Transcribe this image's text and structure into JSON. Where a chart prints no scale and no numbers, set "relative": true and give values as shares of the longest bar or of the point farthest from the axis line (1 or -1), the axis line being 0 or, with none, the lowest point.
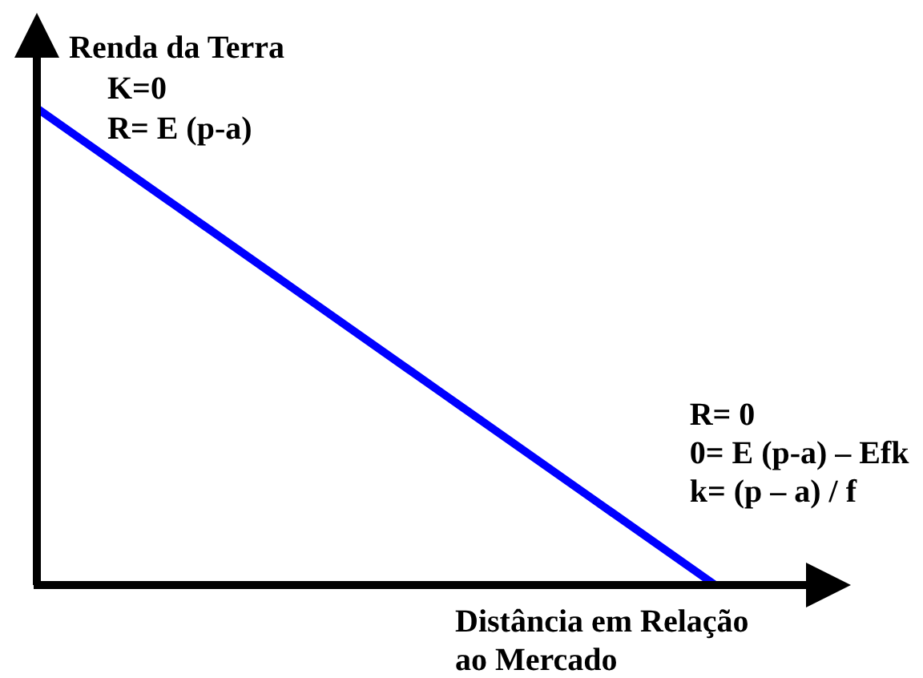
{
  "chart_data": {
    "type": "line",
    "relative": true,
    "xlabel": "Distância em Relação\nao Mercado",
    "ylabel": "Renda da Terra",
    "categories": [
      null,
      null,
      null,
      null,
      null,
      null,
      null
    ],
    "series": [
      {
        "color": "#0000ff",
        "values": [
          1,
          0.8,
          0.6,
          0.4,
          0.2,
          0,
          null
        ]
      }
    ],
    "annotations": [
      "K=0\nR= E (p-a)",
      "R= 0\n0= E (p-a) – Efk\nk= (p – a) / f"
    ],
    "legend": false,
    "marker": "none",
    "line_style": "solid"
  }
}
